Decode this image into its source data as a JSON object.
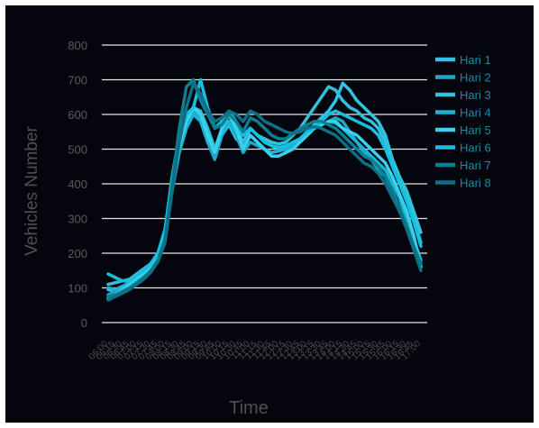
{
  "chart_data": {
    "type": "line",
    "title": "",
    "xlabel": "Time",
    "ylabel": "Vehicles Number",
    "ylim": [
      0,
      800
    ],
    "yticks": [
      0,
      100,
      200,
      300,
      400,
      500,
      600,
      700,
      800
    ],
    "grid": true,
    "legend_position": "right",
    "x": [
      "06:00",
      "06:15",
      "06:30",
      "06:45",
      "07:00",
      "07:15",
      "07:30",
      "07:45",
      "08:00",
      "08:15",
      "08:30",
      "08:45",
      "09:00",
      "09:15",
      "09:30",
      "09:45",
      "10:00",
      "10:15",
      "10:30",
      "10:45",
      "11:00",
      "11:15",
      "11:30",
      "11:45",
      "12:00",
      "12:15",
      "12:30",
      "12:45",
      "13:00",
      "13:15",
      "13:30",
      "13:45",
      "14:00",
      "14:15",
      "14:30",
      "14:45",
      "15:00",
      "15:15",
      "15:30",
      "15:45",
      "16:00",
      "16:15",
      "16:30",
      "16:45",
      "17:00"
    ],
    "series": [
      {
        "name": "Hari 1",
        "color": "#2ec4e6",
        "values": [
          95,
          90,
          100,
          110,
          130,
          145,
          170,
          200,
          260,
          400,
          510,
          570,
          600,
          590,
          560,
          500,
          540,
          570,
          530,
          510,
          560,
          540,
          520,
          510,
          500,
          505,
          520,
          530,
          550,
          570,
          590,
          610,
          640,
          690,
          670,
          640,
          620,
          600,
          580,
          540,
          470,
          420,
          360,
          300,
          230
        ]
      },
      {
        "name": "Hari 2",
        "color": "#20a6c6",
        "values": [
          80,
          90,
          100,
          110,
          120,
          140,
          160,
          190,
          250,
          380,
          500,
          560,
          610,
          590,
          520,
          470,
          540,
          580,
          540,
          490,
          520,
          510,
          500,
          490,
          495,
          500,
          510,
          520,
          540,
          560,
          570,
          580,
          590,
          580,
          550,
          520,
          490,
          470,
          440,
          420,
          380,
          330,
          280,
          230,
          170
        ]
      },
      {
        "name": "Hari 3",
        "color": "#33c0d8",
        "values": [
          110,
          115,
          120,
          125,
          140,
          155,
          170,
          200,
          260,
          420,
          540,
          590,
          620,
          610,
          560,
          500,
          560,
          600,
          560,
          520,
          560,
          540,
          530,
          520,
          515,
          520,
          540,
          560,
          590,
          620,
          650,
          680,
          670,
          640,
          620,
          610,
          590,
          580,
          560,
          520,
          470,
          420,
          380,
          320,
          260
        ]
      },
      {
        "name": "Hari 4",
        "color": "#18b5d4",
        "values": [
          100,
          95,
          105,
          115,
          130,
          145,
          165,
          190,
          240,
          380,
          490,
          560,
          600,
          580,
          520,
          490,
          540,
          580,
          550,
          510,
          540,
          520,
          500,
          490,
          495,
          500,
          515,
          530,
          550,
          560,
          570,
          580,
          575,
          560,
          540,
          520,
          500,
          480,
          460,
          440,
          400,
          360,
          300,
          240,
          180
        ]
      },
      {
        "name": "Hari 5",
        "color": "#3ad0ee",
        "values": [
          70,
          80,
          95,
          110,
          125,
          140,
          160,
          190,
          250,
          390,
          510,
          580,
          620,
          600,
          540,
          490,
          560,
          600,
          560,
          500,
          540,
          520,
          500,
          480,
          480,
          490,
          500,
          520,
          540,
          560,
          570,
          580,
          580,
          560,
          550,
          540,
          520,
          500,
          480,
          460,
          420,
          370,
          320,
          250,
          160
        ]
      },
      {
        "name": "Hari 6",
        "color": "#14c2e0",
        "values": [
          140,
          130,
          120,
          120,
          135,
          150,
          170,
          200,
          270,
          420,
          540,
          600,
          620,
          700,
          620,
          560,
          580,
          610,
          580,
          540,
          560,
          540,
          520,
          510,
          505,
          510,
          520,
          530,
          550,
          560,
          580,
          600,
          610,
          600,
          590,
          580,
          570,
          560,
          540,
          500,
          450,
          400,
          350,
          290,
          220
        ]
      },
      {
        "name": "Hari 7",
        "color": "#0b7f8f",
        "values": [
          75,
          80,
          90,
          100,
          115,
          130,
          150,
          180,
          240,
          400,
          560,
          680,
          700,
          640,
          600,
          560,
          570,
          600,
          580,
          550,
          590,
          580,
          560,
          540,
          530,
          530,
          545,
          560,
          570,
          580,
          580,
          570,
          560,
          540,
          520,
          500,
          480,
          470,
          450,
          420,
          380,
          330,
          280,
          220,
          170
        ]
      },
      {
        "name": "Hari 8",
        "color": "#0e6f86",
        "values": [
          65,
          75,
          85,
          95,
          110,
          125,
          145,
          175,
          230,
          380,
          520,
          620,
          690,
          660,
          610,
          580,
          590,
          610,
          600,
          580,
          610,
          600,
          580,
          570,
          560,
          550,
          545,
          550,
          560,
          565,
          560,
          550,
          540,
          520,
          500,
          480,
          460,
          450,
          430,
          400,
          360,
          320,
          270,
          210,
          150
        ]
      }
    ]
  }
}
